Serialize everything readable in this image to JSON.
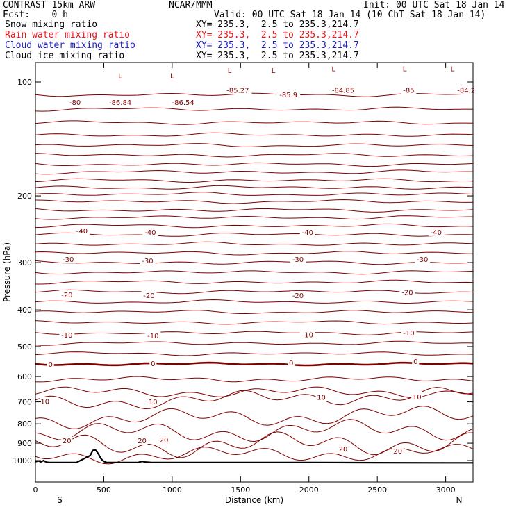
{
  "header": {
    "model": "CONTRAST 15km ARW",
    "org": "NCAR/MMM",
    "init": "Init: 00 UTC Sat 18 Jan 14",
    "fcst": "Fcst:    0 h",
    "valid": "Valid: 00 UTC Sat 18 Jan 14 (10 ChT Sat 18 Jan 14)",
    "fields": [
      {
        "name": "Snow mixing ratio",
        "xy": "XY= 235.3,  2.5 to 235.3,214.7",
        "color": "#000000"
      },
      {
        "name": "Rain water mixing ratio",
        "xy": "XY= 235.3,  2.5 to 235.3,214.7",
        "color": "#e8141c"
      },
      {
        "name": "Cloud water mixing ratio",
        "xy": "XY= 235.3,  2.5 to 235.3,214.7",
        "color": "#1c1cc8"
      },
      {
        "name": "Cloud ice mixing ratio",
        "xy": "XY= 235.3,  2.5 to 235.3,214.7",
        "color": "#000000"
      }
    ]
  },
  "chart_data": {
    "type": "line",
    "xlabel": "Distance (km)",
    "ylabel": "Pressure (hPa)",
    "xlim": [
      0,
      3200
    ],
    "ylim": [
      1040,
      70
    ],
    "x_ticks": [
      0,
      500,
      1000,
      1500,
      2000,
      2500,
      3000
    ],
    "y_ticks": [
      100,
      200,
      300,
      400,
      500,
      600,
      700,
      800,
      900,
      1000
    ],
    "endpoint_labels": {
      "left": "S",
      "right": "N"
    },
    "contour_color": "#800000",
    "terrain_color": "#000000",
    "contour_labels": [
      {
        "text": "-80",
        "x": 290,
        "p": 113
      },
      {
        "text": "-86.84",
        "x": 620,
        "p": 113
      },
      {
        "text": "-86.54",
        "x": 1080,
        "p": 113
      },
      {
        "text": "-85.27",
        "x": 1480,
        "p": 105
      },
      {
        "text": "-85.9",
        "x": 1850,
        "p": 108
      },
      {
        "text": "-84.85",
        "x": 2250,
        "p": 105
      },
      {
        "text": "-85",
        "x": 2730,
        "p": 105
      },
      {
        "text": "-84.2",
        "x": 3150,
        "p": 105
      },
      {
        "text": "-40",
        "x": 340,
        "p": 247
      },
      {
        "text": "-40",
        "x": 840,
        "p": 249
      },
      {
        "text": "-40",
        "x": 1990,
        "p": 249
      },
      {
        "text": "-40",
        "x": 2930,
        "p": 249
      },
      {
        "text": "-30",
        "x": 240,
        "p": 294
      },
      {
        "text": "-30",
        "x": 820,
        "p": 296
      },
      {
        "text": "-30",
        "x": 1920,
        "p": 294
      },
      {
        "text": "-30",
        "x": 2830,
        "p": 294
      },
      {
        "text": "-20",
        "x": 230,
        "p": 364
      },
      {
        "text": "-20",
        "x": 830,
        "p": 366
      },
      {
        "text": "-20",
        "x": 1920,
        "p": 366
      },
      {
        "text": "-20",
        "x": 2720,
        "p": 359
      },
      {
        "text": "-10",
        "x": 230,
        "p": 465
      },
      {
        "text": "-10",
        "x": 860,
        "p": 467
      },
      {
        "text": "-10",
        "x": 1990,
        "p": 464
      },
      {
        "text": "-10",
        "x": 2730,
        "p": 460
      },
      {
        "text": "0",
        "x": 110,
        "p": 556
      },
      {
        "text": "0",
        "x": 860,
        "p": 553
      },
      {
        "text": "0",
        "x": 1870,
        "p": 551
      },
      {
        "text": "0",
        "x": 2780,
        "p": 546
      },
      {
        "text": "10",
        "x": 70,
        "p": 697
      },
      {
        "text": "10",
        "x": 860,
        "p": 699
      },
      {
        "text": "10",
        "x": 2090,
        "p": 680
      },
      {
        "text": "10",
        "x": 2790,
        "p": 678
      },
      {
        "text": "20",
        "x": 230,
        "p": 885
      },
      {
        "text": "20",
        "x": 780,
        "p": 885
      },
      {
        "text": "20",
        "x": 940,
        "p": 881
      },
      {
        "text": "20",
        "x": 2250,
        "p": 930
      },
      {
        "text": "20",
        "x": 2650,
        "p": 943
      }
    ],
    "low_markers": [
      {
        "text": "L",
        "x": 620,
        "p": 96
      },
      {
        "text": "L",
        "x": 1000,
        "p": 96
      },
      {
        "text": "L",
        "x": 1420,
        "p": 93
      },
      {
        "text": "L",
        "x": 1740,
        "p": 93
      },
      {
        "text": "L",
        "x": 2180,
        "p": 92
      },
      {
        "text": "L",
        "x": 2700,
        "p": 92
      },
      {
        "text": "L",
        "x": 3050,
        "p": 92
      }
    ],
    "terrain": {
      "x": [
        0,
        20,
        40,
        60,
        80,
        100,
        150,
        300,
        400,
        420,
        440,
        460,
        480,
        500,
        520,
        600,
        750,
        780,
        800,
        850,
        1000,
        1500,
        2000,
        2500,
        3000,
        3200
      ],
      "p": [
        1008,
        1002,
        1008,
        1000,
        1010,
        1012,
        1012,
        1012,
        970,
        940,
        938,
        960,
        990,
        1005,
        1012,
        1012,
        1012,
        1005,
        1009,
        1012,
        1012,
        1012,
        1012,
        1013,
        1014,
        1014
      ]
    }
  }
}
